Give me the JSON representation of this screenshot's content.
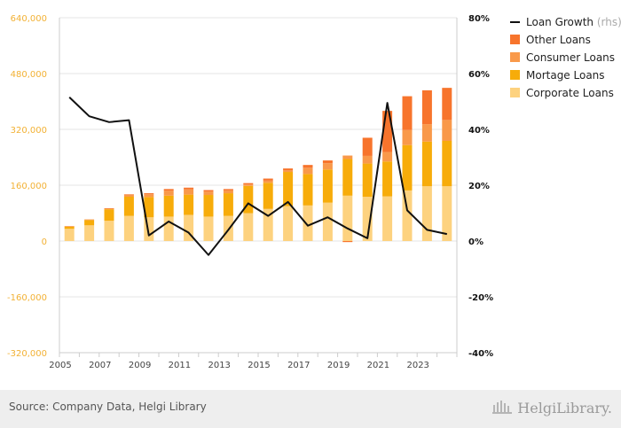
{
  "chart_data": {
    "type": "bar",
    "stacked": true,
    "categories": [
      "2005",
      "2006",
      "2007",
      "2008",
      "2009",
      "2010",
      "2011",
      "2012",
      "2013",
      "2014",
      "2015",
      "2016",
      "2017",
      "2018",
      "2019",
      "2020",
      "2021",
      "2022",
      "2023",
      "2024"
    ],
    "x_tick_labels": [
      "2005",
      "2007",
      "2009",
      "2011",
      "2013",
      "2015",
      "2017",
      "2019",
      "2021",
      "2023"
    ],
    "series": [
      {
        "name": "Corporate Loans",
        "color": "#fdd27f",
        "values": [
          35000,
          45000,
          58000,
          72000,
          68000,
          70000,
          75000,
          70000,
          72000,
          80000,
          92000,
          100000,
          102000,
          110000,
          130000,
          127000,
          128000,
          145000,
          157000,
          157000
        ]
      },
      {
        "name": "Mortage Loans",
        "color": "#f7ac0a",
        "values": [
          6000,
          15000,
          33000,
          55000,
          58000,
          60000,
          58000,
          62000,
          65000,
          78000,
          75000,
          98000,
          90000,
          95000,
          105000,
          95000,
          100000,
          130000,
          128000,
          130000
        ]
      },
      {
        "name": "Consumer Loans",
        "color": "#f9994a",
        "values": [
          2000,
          2000,
          2000,
          6000,
          8000,
          14000,
          15000,
          10000,
          8000,
          4000,
          6000,
          5000,
          18000,
          18000,
          10000,
          22000,
          27000,
          43000,
          50000,
          60000
        ]
      },
      {
        "name": "Other Loans",
        "color": "#f7742c",
        "values": [
          0,
          0,
          1000,
          1000,
          3000,
          5000,
          5000,
          4000,
          4000,
          4000,
          6000,
          5000,
          8000,
          8000,
          -3000,
          52000,
          118000,
          97000,
          97000,
          92000
        ]
      }
    ],
    "line": {
      "name": "Loan Growth",
      "name_suffix": "(rhs)",
      "color": "#111111",
      "values": [
        51.5,
        44.7,
        42.6,
        43.3,
        2.0,
        7.0,
        3.0,
        -5.0,
        4.0,
        13.5,
        9.0,
        14.0,
        5.5,
        8.5,
        4.5,
        1.0,
        49.5,
        11.0,
        4.0,
        2.5
      ]
    },
    "ylim_left": [
      -320000,
      640000
    ],
    "ylim_right": [
      -40,
      80
    ],
    "yticks_left": [
      "640,000",
      "480,000",
      "320,000",
      "160,000",
      "0",
      "-160,000",
      "-320,000"
    ],
    "yticks_right": [
      "80%",
      "60%",
      "40%",
      "20%",
      "0%",
      "-20%",
      "-40%"
    ],
    "grid": true,
    "legend_position": "top-right"
  },
  "footer": {
    "source": "Source: Company Data, Helgi Library",
    "logo_text": "HelgiLibrary."
  }
}
